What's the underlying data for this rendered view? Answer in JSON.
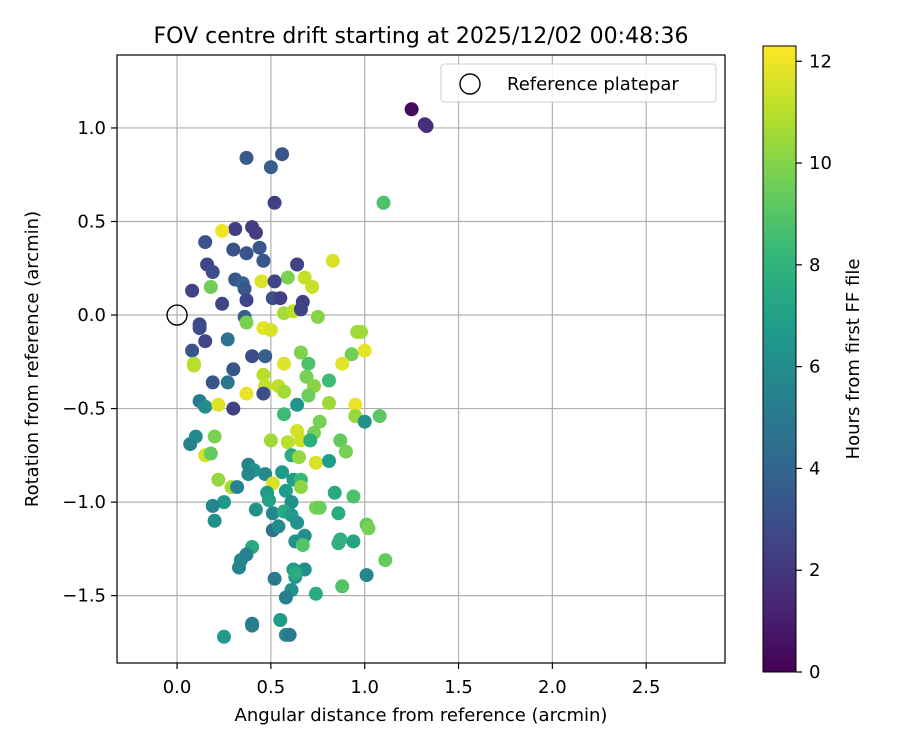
{
  "chart_data": {
    "type": "scatter",
    "title": "FOV centre drift starting at 2025/12/02 00:48:36",
    "xlabel": "Angular distance from reference (arcmin)",
    "ylabel": "Rotation from reference (arcmin)",
    "xlim": [
      -0.32,
      2.92
    ],
    "ylim": [
      -1.86,
      1.39
    ],
    "xticks": [
      0.0,
      0.5,
      1.0,
      1.5,
      2.0,
      2.5
    ],
    "xtick_labels": [
      "0.0",
      "0.5",
      "1.0",
      "1.5",
      "2.0",
      "2.5"
    ],
    "yticks": [
      -1.5,
      -1.0,
      -0.5,
      0.0,
      0.5,
      1.0
    ],
    "ytick_labels": [
      "−1.5",
      "−1.0",
      "−0.5",
      "0.0",
      "0.5",
      "1.0"
    ],
    "grid": true,
    "legend": {
      "position": "upper-right",
      "entries": [
        {
          "label": "Reference platepar",
          "marker": "open-circle"
        }
      ]
    },
    "reference_point": {
      "x": 0.0,
      "y": 0.0
    },
    "colorbar": {
      "label": "Hours from first FF file",
      "range": [
        0,
        12.3
      ],
      "ticks": [
        0,
        2,
        4,
        6,
        8,
        10,
        12
      ],
      "tick_labels": [
        "0",
        "2",
        "4",
        "6",
        "8",
        "10",
        "12"
      ],
      "colormap": "viridis",
      "colors": [
        "#440154",
        "#482878",
        "#3e4989",
        "#31688e",
        "#26828e",
        "#1f9e89",
        "#35b779",
        "#6ece58",
        "#b5de2b",
        "#fde725"
      ]
    },
    "points": [
      [
        1.25,
        1.1,
        0.3
      ],
      [
        1.32,
        1.02,
        1.6
      ],
      [
        1.33,
        1.01,
        1.7
      ],
      [
        0.56,
        0.86,
        3.3
      ],
      [
        0.37,
        0.84,
        3.5
      ],
      [
        0.5,
        0.79,
        3.6
      ],
      [
        0.52,
        0.6,
        2.4
      ],
      [
        1.1,
        0.6,
        8.8
      ],
      [
        0.4,
        0.47,
        2.3
      ],
      [
        0.31,
        0.46,
        2.2
      ],
      [
        0.42,
        0.44,
        2.2
      ],
      [
        0.24,
        0.45,
        12.0
      ],
      [
        0.15,
        0.39,
        3.2
      ],
      [
        0.44,
        0.36,
        3.3
      ],
      [
        0.3,
        0.35,
        3.1
      ],
      [
        0.37,
        0.33,
        3.2
      ],
      [
        0.46,
        0.29,
        3.4
      ],
      [
        0.64,
        0.27,
        2.5
      ],
      [
        0.16,
        0.27,
        2.6
      ],
      [
        0.19,
        0.23,
        2.9
      ],
      [
        0.83,
        0.29,
        11.6
      ],
      [
        0.59,
        0.2,
        9.8
      ],
      [
        0.68,
        0.2,
        11.2
      ],
      [
        0.72,
        0.15,
        11.3
      ],
      [
        0.31,
        0.19,
        3.3
      ],
      [
        0.35,
        0.17,
        4.0
      ],
      [
        0.45,
        0.18,
        11.7
      ],
      [
        0.52,
        0.18,
        2.6
      ],
      [
        0.08,
        0.13,
        2.5
      ],
      [
        0.36,
        0.14,
        3.4
      ],
      [
        0.37,
        0.08,
        2.6
      ],
      [
        0.51,
        0.09,
        3.1
      ],
      [
        0.55,
        0.09,
        2.3
      ],
      [
        0.67,
        0.07,
        2.3
      ],
      [
        0.24,
        0.06,
        2.6
      ],
      [
        0.57,
        0.01,
        10.6
      ],
      [
        0.62,
        0.02,
        11.1
      ],
      [
        0.66,
        0.03,
        2.5
      ],
      [
        0.75,
        -0.01,
        10.0
      ],
      [
        0.36,
        -0.01,
        3.6
      ],
      [
        0.12,
        -0.05,
        2.7
      ],
      [
        0.37,
        -0.04,
        9.8
      ],
      [
        0.12,
        -0.07,
        2.8
      ],
      [
        0.46,
        -0.07,
        11.8
      ],
      [
        0.5,
        -0.08,
        11.6
      ],
      [
        0.96,
        -0.09,
        10.6
      ],
      [
        0.98,
        -0.09,
        10.5
      ],
      [
        0.08,
        -0.19,
        3.2
      ],
      [
        0.15,
        -0.14,
        2.6
      ],
      [
        0.27,
        -0.13,
        4.6
      ],
      [
        0.18,
        0.15,
        9.6
      ],
      [
        1.0,
        -0.19,
        11.9
      ],
      [
        0.66,
        -0.2,
        9.9
      ],
      [
        0.93,
        -0.21,
        9.6
      ],
      [
        0.4,
        -0.22,
        2.8
      ],
      [
        0.47,
        -0.22,
        3.7
      ],
      [
        0.09,
        -0.26,
        10.9
      ],
      [
        0.09,
        -0.27,
        11.0
      ],
      [
        0.57,
        -0.26,
        11.7
      ],
      [
        0.7,
        -0.26,
        8.8
      ],
      [
        0.88,
        -0.26,
        11.8
      ],
      [
        0.3,
        -0.29,
        3.3
      ],
      [
        0.46,
        -0.32,
        11.0
      ],
      [
        0.69,
        -0.33,
        9.7
      ],
      [
        0.81,
        -0.35,
        8.4
      ],
      [
        0.19,
        -0.36,
        3.3
      ],
      [
        0.27,
        -0.36,
        4.9
      ],
      [
        0.47,
        -0.38,
        11.2
      ],
      [
        0.54,
        -0.38,
        11.1
      ],
      [
        0.73,
        -0.38,
        10.1
      ],
      [
        0.37,
        -0.42,
        11.9
      ],
      [
        0.46,
        -0.42,
        3.0
      ],
      [
        0.57,
        -0.41,
        10.6
      ],
      [
        0.7,
        -0.43,
        9.5
      ],
      [
        0.12,
        -0.46,
        5.0
      ],
      [
        0.15,
        -0.49,
        6.0
      ],
      [
        0.22,
        -0.48,
        11.7
      ],
      [
        0.3,
        -0.5,
        2.4
      ],
      [
        0.64,
        -0.48,
        6.4
      ],
      [
        0.81,
        -0.47,
        10.5
      ],
      [
        0.95,
        -0.48,
        11.9
      ],
      [
        0.57,
        -0.53,
        8.4
      ],
      [
        0.95,
        -0.54,
        10.4
      ],
      [
        1.08,
        -0.54,
        9.1
      ],
      [
        1.0,
        -0.57,
        6.2
      ],
      [
        0.76,
        -0.57,
        9.7
      ],
      [
        0.73,
        -0.63,
        9.7
      ],
      [
        0.64,
        -0.62,
        11.5
      ],
      [
        0.1,
        -0.65,
        5.9
      ],
      [
        0.07,
        -0.69,
        5.5
      ],
      [
        0.2,
        -0.65,
        9.8
      ],
      [
        0.5,
        -0.67,
        10.5
      ],
      [
        0.59,
        -0.68,
        11.0
      ],
      [
        0.66,
        -0.67,
        11.4
      ],
      [
        0.71,
        -0.67,
        7.7
      ],
      [
        0.87,
        -0.67,
        9.3
      ],
      [
        0.15,
        -0.75,
        11.5
      ],
      [
        0.18,
        -0.74,
        9.3
      ],
      [
        0.61,
        -0.75,
        7.5
      ],
      [
        0.9,
        -0.73,
        9.7
      ],
      [
        0.65,
        -0.76,
        10.3
      ],
      [
        0.74,
        -0.79,
        11.6
      ],
      [
        0.81,
        -0.78,
        6.9
      ],
      [
        0.38,
        -0.8,
        5.4
      ],
      [
        0.41,
        -0.83,
        6.4
      ],
      [
        0.47,
        -0.85,
        5.8
      ],
      [
        0.56,
        -0.84,
        6.7
      ],
      [
        0.22,
        -0.88,
        10.3
      ],
      [
        0.38,
        -0.85,
        5.7
      ],
      [
        0.62,
        -0.88,
        6.9
      ],
      [
        0.66,
        -0.88,
        8.3
      ],
      [
        0.29,
        -0.92,
        10.7
      ],
      [
        0.51,
        -0.9,
        11.6
      ],
      [
        0.66,
        -0.92,
        10.2
      ],
      [
        0.32,
        -0.92,
        5.5
      ],
      [
        0.48,
        -0.95,
        6.7
      ],
      [
        0.58,
        -0.94,
        6.8
      ],
      [
        0.84,
        -0.95,
        7.5
      ],
      [
        0.94,
        -0.97,
        8.8
      ],
      [
        0.25,
        -1.0,
        6.6
      ],
      [
        0.49,
        -0.99,
        7.0
      ],
      [
        0.61,
        -1.0,
        6.2
      ],
      [
        0.19,
        -1.02,
        5.6
      ],
      [
        0.42,
        -1.04,
        6.2
      ],
      [
        0.74,
        -1.03,
        9.8
      ],
      [
        0.76,
        -1.03,
        9.5
      ],
      [
        0.51,
        -1.06,
        5.7
      ],
      [
        0.57,
        -1.05,
        7.5
      ],
      [
        0.61,
        -1.07,
        6.7
      ],
      [
        0.86,
        -1.06,
        7.6
      ],
      [
        0.2,
        -1.1,
        6.1
      ],
      [
        0.64,
        -1.11,
        6.3
      ],
      [
        0.51,
        -1.15,
        4.7
      ],
      [
        0.54,
        -1.13,
        5.9
      ],
      [
        1.01,
        -1.12,
        9.3
      ],
      [
        1.02,
        -1.14,
        9.7
      ],
      [
        0.68,
        -1.18,
        6.1
      ],
      [
        0.63,
        -1.21,
        6.2
      ],
      [
        0.67,
        -1.23,
        9.0
      ],
      [
        0.86,
        -1.22,
        8.0
      ],
      [
        0.87,
        -1.2,
        7.8
      ],
      [
        0.94,
        -1.21,
        7.2
      ],
      [
        0.4,
        -1.24,
        7.4
      ],
      [
        0.37,
        -1.28,
        5.4
      ],
      [
        0.34,
        -1.31,
        5.7
      ],
      [
        0.62,
        -1.36,
        6.6
      ],
      [
        0.68,
        -1.36,
        6.1
      ],
      [
        0.33,
        -1.35,
        5.6
      ],
      [
        1.01,
        -1.39,
        5.7
      ],
      [
        0.63,
        -1.4,
        6.4
      ],
      [
        0.52,
        -1.41,
        5.0
      ],
      [
        0.63,
        -1.38,
        7.5
      ],
      [
        1.11,
        -1.31,
        9.3
      ],
      [
        0.74,
        -1.49,
        7.6
      ],
      [
        0.88,
        -1.45,
        8.9
      ],
      [
        0.61,
        -1.47,
        6.3
      ],
      [
        0.58,
        -1.51,
        5.3
      ],
      [
        0.55,
        -1.63,
        6.8
      ],
      [
        0.4,
        -1.65,
        5.4
      ],
      [
        0.4,
        -1.66,
        5.2
      ],
      [
        0.25,
        -1.72,
        6.8
      ],
      [
        0.58,
        -1.71,
        6.0
      ],
      [
        0.6,
        -1.71,
        5.0
      ]
    ]
  }
}
